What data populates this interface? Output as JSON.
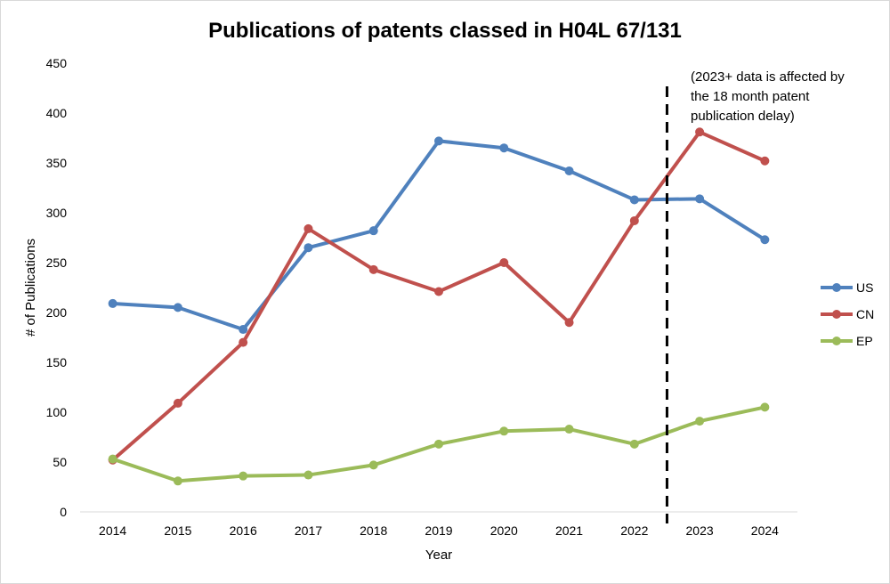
{
  "chart_data": {
    "type": "line",
    "title": "Publications of patents classed in H04L 67/131",
    "xlabel": "Year",
    "ylabel": "# of Publications",
    "ylim": [
      0,
      450
    ],
    "yticks": [
      0,
      50,
      100,
      150,
      200,
      250,
      300,
      350,
      400,
      450
    ],
    "categories": [
      "2014",
      "2015",
      "2016",
      "2017",
      "2018",
      "2019",
      "2020",
      "2021",
      "2022",
      "2023",
      "2024"
    ],
    "grid": false,
    "legend_position": "right",
    "series": [
      {
        "name": "US",
        "color": "#4f81bd",
        "values": [
          209,
          205,
          183,
          265,
          282,
          372,
          365,
          342,
          313,
          314,
          273
        ]
      },
      {
        "name": "CN",
        "color": "#c0504d",
        "values": [
          52,
          109,
          170,
          284,
          243,
          221,
          250,
          190,
          292,
          381,
          352
        ]
      },
      {
        "name": "EP",
        "color": "#9bbb59",
        "values": [
          53,
          31,
          36,
          37,
          47,
          68,
          81,
          83,
          68,
          91,
          105
        ]
      }
    ],
    "annotation": {
      "divider_between": [
        "2022",
        "2023"
      ],
      "divider_style": "dashed",
      "lines": [
        "(2023+ data is affected by",
        "the 18 month  patent",
        "publication delay)"
      ]
    }
  }
}
